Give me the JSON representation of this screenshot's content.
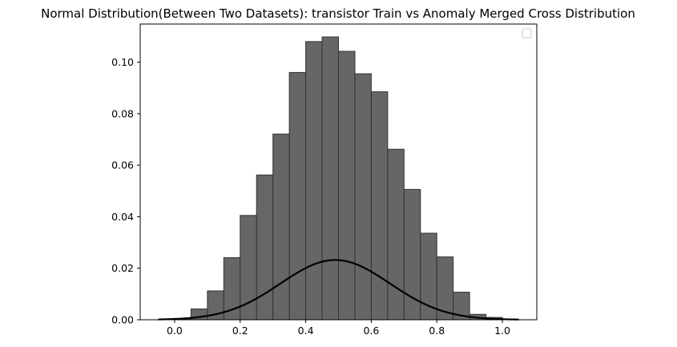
{
  "chart_data": {
    "type": "bar",
    "title": "Normal Distribution(Between Two Datasets): transistor Train vs Anomaly Merged Cross Distribution",
    "xlabel": "",
    "ylabel": "",
    "xlim": [
      -0.105,
      1.105
    ],
    "ylim": [
      0.0,
      0.1148
    ],
    "x_ticks": [
      0.0,
      0.2,
      0.4,
      0.6,
      0.8,
      1.0
    ],
    "x_tick_labels": [
      "0.0",
      "0.2",
      "0.4",
      "0.6",
      "0.8",
      "1.0"
    ],
    "y_ticks": [
      0.0,
      0.02,
      0.04,
      0.06,
      0.08,
      0.1
    ],
    "y_tick_labels": [
      "0.00",
      "0.02",
      "0.04",
      "0.06",
      "0.08",
      "0.10"
    ],
    "grid": false,
    "legend": {
      "placement": "top-right",
      "entries": []
    },
    "histogram": {
      "bin_edges": [
        0.0,
        0.05,
        0.1,
        0.15,
        0.2,
        0.25,
        0.3,
        0.35,
        0.4,
        0.45,
        0.5,
        0.55,
        0.6,
        0.65,
        0.7,
        0.75,
        0.8,
        0.85,
        0.9,
        0.95,
        1.0
      ],
      "values": [
        0.0003,
        0.0042,
        0.0112,
        0.0241,
        0.0405,
        0.0562,
        0.0721,
        0.096,
        0.108,
        0.1098,
        0.1042,
        0.0955,
        0.0885,
        0.0662,
        0.0506,
        0.0336,
        0.0244,
        0.0107,
        0.0021,
        0.0009
      ],
      "fill_color": "#666666",
      "edge_color": "#333333"
    },
    "curve": {
      "mu": 0.49,
      "sigma": 0.167,
      "peak": 0.0232,
      "x_range": [
        -0.05,
        1.05
      ],
      "color": "#000000"
    }
  }
}
